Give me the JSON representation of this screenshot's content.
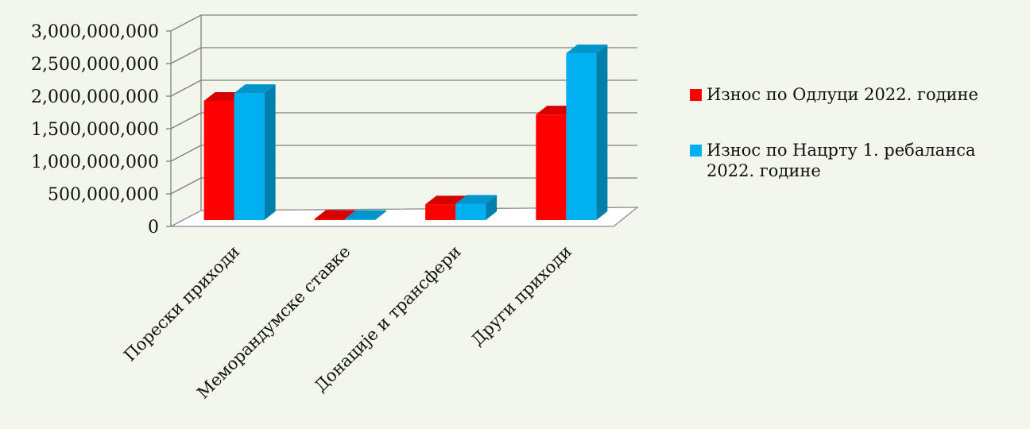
{
  "chart_data": {
    "type": "bar",
    "style": "3d-clustered-column",
    "categories": [
      "Порески приходи",
      "Меморандумске ставке",
      "Донације и трансфери",
      "Други приходи"
    ],
    "series": [
      {
        "name": "Износ по Одлуци 2022. године",
        "color": "#ff0000",
        "values": [
          1830000000,
          5000000,
          240000000,
          1620000000
        ]
      },
      {
        "name": "Износ по Нацрту 1. ребаланса\n2022. године",
        "color": "#00b0f0",
        "values": [
          1950000000,
          5000000,
          250000000,
          2560000000
        ]
      }
    ],
    "y_ticks": [
      "0",
      "500,000,000",
      "1,000,000,000",
      "1,500,000,000",
      "2,000,000,000",
      "2,500,000,000",
      "3,000,000,000"
    ],
    "ylim": [
      0,
      3000000000
    ],
    "grid": true,
    "legend_position": "right"
  }
}
